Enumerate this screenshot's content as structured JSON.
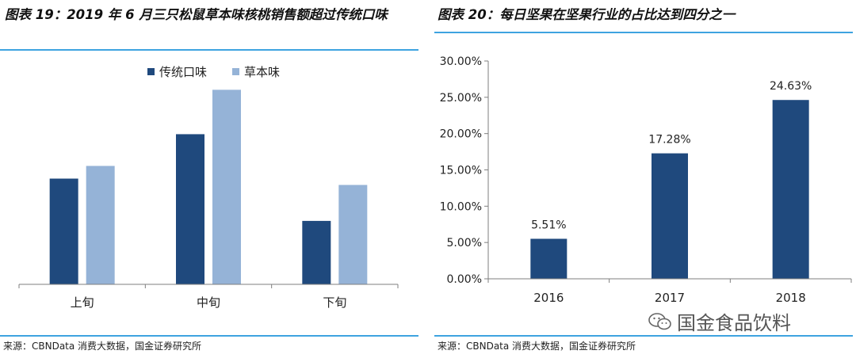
{
  "left": {
    "title": "图表 19：2019 年 6 月三只松鼠草本味核桃销售额超过传统口味",
    "source": "来源：CBNData 消费大数据，国金证券研究所"
  },
  "right": {
    "title": "图表 20：每日坚果在坚果行业的占比达到四分之一",
    "source": "来源：CBNData 消费大数据，国金证券研究所"
  },
  "watermark": {
    "text": "国金食品饮料",
    "icon": "wechat-icon"
  },
  "colors": {
    "dark_blue": "#1f497d",
    "light_blue": "#95b3d7",
    "rule": "#3ea3e0"
  },
  "chart_data": [
    {
      "type": "bar",
      "categories": [
        "上旬",
        "中旬",
        "下旬"
      ],
      "series": [
        {
          "name": "传统口味",
          "values": [
            50,
            71,
            30
          ]
        },
        {
          "name": "草本味",
          "values": [
            56,
            92,
            47
          ]
        }
      ],
      "ylim": [
        0,
        100
      ],
      "legend": "top-center",
      "y_axis_visible": false,
      "grid": false
    },
    {
      "type": "bar",
      "categories": [
        "2016",
        "2017",
        "2018"
      ],
      "values": [
        5.51,
        17.28,
        24.63
      ],
      "data_labels": [
        "5.51%",
        "17.28%",
        "24.63%"
      ],
      "yticks": [
        "0.00%",
        "5.00%",
        "10.00%",
        "15.00%",
        "20.00%",
        "25.00%",
        "30.00%"
      ],
      "ylim": [
        0,
        30
      ],
      "grid": false
    }
  ]
}
